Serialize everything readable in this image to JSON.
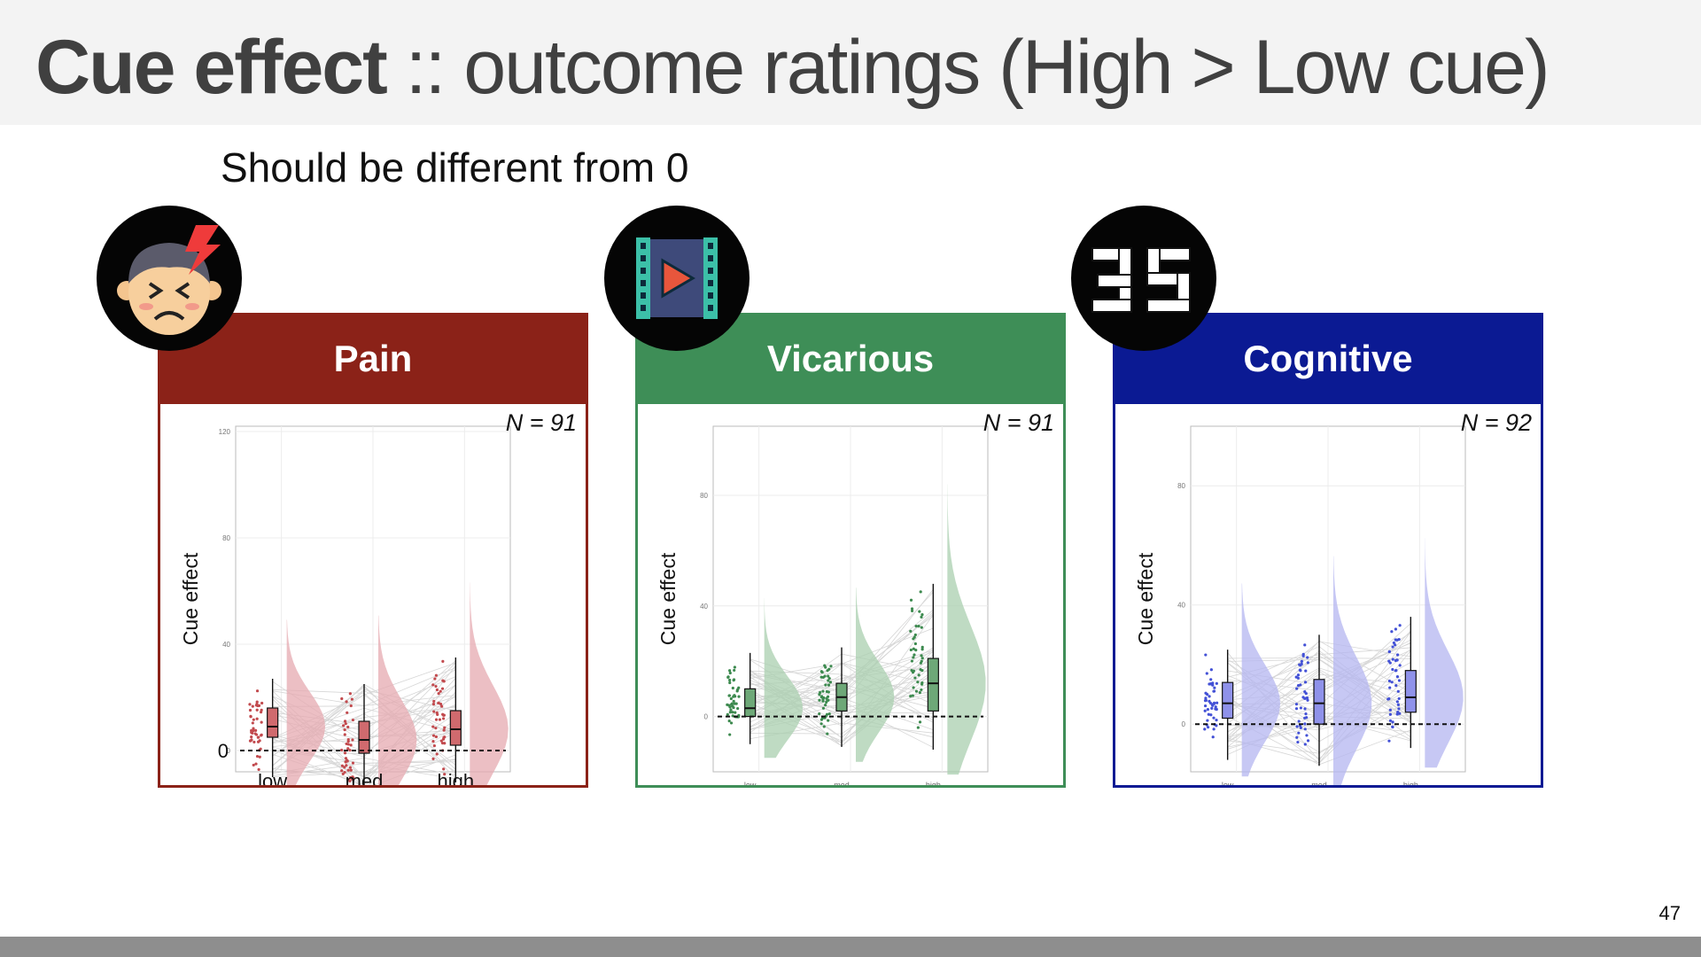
{
  "slide": {
    "title_bold": "Cue effect",
    "title_rest": " :: outcome ratings (High > Low cue)",
    "subtitle": "Should be different from 0",
    "page_number": "47"
  },
  "icons": [
    "pain-face-icon",
    "film-strip-icon",
    "cube-digits-icon"
  ],
  "colors": {
    "pain_header": "#8b2218",
    "vicarious_header": "#3e8e57",
    "cognitive_header": "#0b1a93",
    "pain_fill": "#e5a9b0",
    "vicarious_fill": "#a9cfaf",
    "cognitive_fill": "#b4b6f0"
  },
  "chart_data": [
    {
      "type": "box",
      "panel_title": "Pain",
      "annotation": "N = 91",
      "ylabel": "Cue effect",
      "categories": [
        "low",
        "med",
        "high"
      ],
      "yticks": [
        0,
        40,
        80,
        120
      ],
      "ylim": [
        -8,
        122
      ],
      "reference_line": 0,
      "series": [
        {
          "category": "low",
          "q1": 5,
          "median": 9,
          "q3": 16,
          "whisker_low": -10,
          "whisker_high": 27
        },
        {
          "category": "med",
          "q1": -1,
          "median": 4,
          "q3": 11,
          "whisker_low": -18,
          "whisker_high": 25
        },
        {
          "category": "high",
          "q1": 2,
          "median": 8,
          "q3": 15,
          "whisker_low": -12,
          "whisker_high": 35
        }
      ]
    },
    {
      "type": "box",
      "panel_title": "Vicarious",
      "annotation": "N = 91",
      "ylabel": "Cue effect",
      "categories": [
        "low",
        "med",
        "high"
      ],
      "yticks": [
        0,
        40,
        80
      ],
      "ylim": [
        -20,
        105
      ],
      "reference_line": 0,
      "series": [
        {
          "category": "low",
          "q1": 0,
          "median": 3,
          "q3": 10,
          "whisker_low": -10,
          "whisker_high": 23
        },
        {
          "category": "med",
          "q1": 2,
          "median": 7,
          "q3": 12,
          "whisker_low": -11,
          "whisker_high": 25
        },
        {
          "category": "high",
          "q1": 2,
          "median": 12,
          "q3": 21,
          "whisker_low": -12,
          "whisker_high": 48
        }
      ]
    },
    {
      "type": "box",
      "panel_title": "Cognitive",
      "annotation": "N = 92",
      "ylabel": "Cue effect",
      "categories": [
        "low",
        "med",
        "high"
      ],
      "yticks": [
        0,
        40,
        80
      ],
      "ylim": [
        -16,
        100
      ],
      "reference_line": 0,
      "series": [
        {
          "category": "low",
          "q1": 2,
          "median": 7,
          "q3": 14,
          "whisker_low": -12,
          "whisker_high": 25
        },
        {
          "category": "med",
          "q1": 0,
          "median": 7,
          "q3": 15,
          "whisker_low": -14,
          "whisker_high": 30
        },
        {
          "category": "high",
          "q1": 4,
          "median": 9,
          "q3": 18,
          "whisker_low": -8,
          "whisker_high": 36
        }
      ]
    }
  ]
}
